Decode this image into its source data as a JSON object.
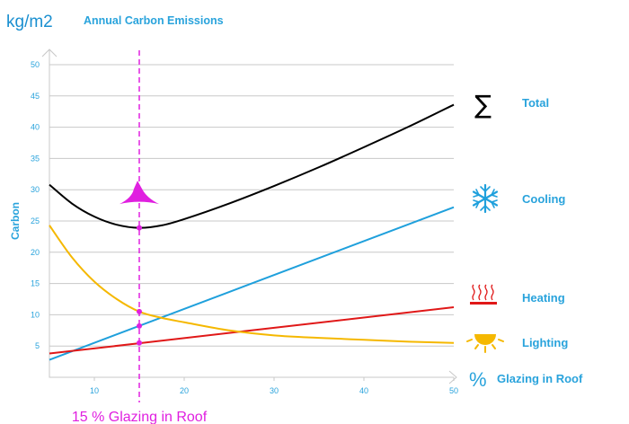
{
  "chart_data": {
    "type": "line",
    "title": "Annual Carbon Emissions",
    "unit_label": "kg/m2",
    "ylabel": "Carbon",
    "xlabel": "Glazing in Roof",
    "x_unit_symbol": "%",
    "xlim": [
      5,
      50
    ],
    "ylim": [
      0,
      50
    ],
    "x_ticks": [
      10,
      20,
      30,
      40,
      50
    ],
    "y_ticks": [
      5,
      10,
      15,
      20,
      25,
      30,
      35,
      40,
      45,
      50
    ],
    "grid": true,
    "legend_position": "right",
    "series": [
      {
        "name": "Total",
        "color": "#000000",
        "icon": "sigma-icon",
        "x": [
          5,
          7.5,
          10,
          12.5,
          15,
          17.5,
          20,
          25,
          30,
          35,
          40,
          45,
          50
        ],
        "y": [
          30.8,
          27.8,
          25.7,
          24.4,
          23.9,
          24.3,
          25.3,
          27.8,
          30.6,
          33.6,
          36.8,
          40.1,
          43.6
        ]
      },
      {
        "name": "Cooling",
        "color": "#1fa0dc",
        "icon": "snowflake-icon",
        "x": [
          5,
          50
        ],
        "y": [
          2.8,
          27.2
        ]
      },
      {
        "name": "Heating",
        "color": "#e01818",
        "icon": "heating-icon",
        "x": [
          5,
          50
        ],
        "y": [
          3.8,
          11.2
        ]
      },
      {
        "name": "Lighting",
        "color": "#f5b800",
        "icon": "sun-icon",
        "x": [
          5,
          7.5,
          10,
          12.5,
          15,
          17.5,
          20,
          25,
          30,
          35,
          40,
          45,
          50
        ],
        "y": [
          24.3,
          19.2,
          15.3,
          12.5,
          10.5,
          9.5,
          8.8,
          7.5,
          6.7,
          6.3,
          6.0,
          5.7,
          5.5
        ]
      }
    ],
    "annotation": {
      "x": 15,
      "label": "15 % Glazing in Roof",
      "color": "#e020e0",
      "points_y": [
        23.9,
        10.5,
        8.2,
        5.5
      ],
      "marker_y": 29
    }
  }
}
